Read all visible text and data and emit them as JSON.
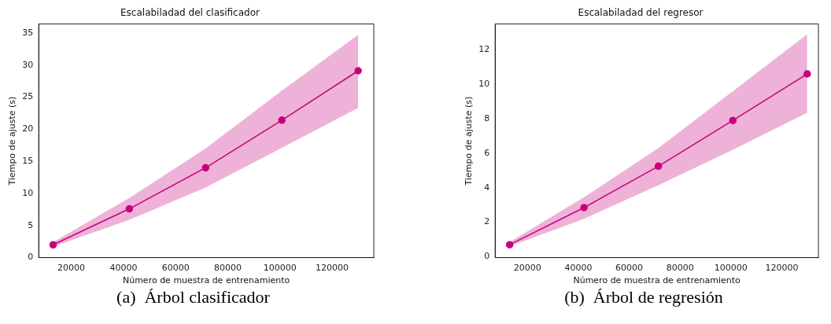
{
  "chart_data": [
    {
      "type": "line",
      "title": "Escalabiladad del clasificador",
      "xlabel": "Número de muestra de entrenamiento",
      "ylabel": "Tiempo de ajuste (s)",
      "annotations": [
        "(a)  Árbol clasificador"
      ],
      "x": [
        13000,
        42250,
        71500,
        100750,
        130000
      ],
      "xlim": [
        7500,
        136000
      ],
      "xticks": [
        20000,
        40000,
        60000,
        80000,
        100000,
        120000
      ],
      "ylim": [
        0,
        36.4
      ],
      "yticks": [
        0,
        5,
        10,
        15,
        20,
        25,
        30,
        35
      ],
      "grid": false,
      "legend": false,
      "marker": "circle",
      "line_style": "solid",
      "series": [
        {
          "color": "#c8007f",
          "values": [
            2.0,
            7.6,
            14.0,
            21.4,
            29.1
          ],
          "lower": [
            1.7,
            5.9,
            10.9,
            17.1,
            23.3
          ],
          "upper": [
            2.4,
            9.3,
            17.0,
            26.0,
            34.7
          ]
        }
      ]
    },
    {
      "type": "line",
      "title": "Escalabiladad del regresor",
      "xlabel": "Número de muestra de entrenamiento",
      "ylabel": "Tiempo de ajuste (s)",
      "annotations": [
        "(b)  Árbol de regresión"
      ],
      "x": [
        13000,
        42250,
        71500,
        100750,
        130000
      ],
      "xlim": [
        7300,
        134400
      ],
      "xticks": [
        20000,
        40000,
        60000,
        80000,
        100000,
        120000
      ],
      "ylim": [
        -0.05,
        13.5
      ],
      "yticks": [
        0,
        2,
        4,
        6,
        8,
        10,
        12
      ],
      "grid": false,
      "legend": false,
      "marker": "circle",
      "line_style": "solid",
      "series": [
        {
          "color": "#c8007f",
          "values": [
            0.7,
            2.85,
            5.25,
            7.9,
            10.6
          ],
          "lower": [
            0.6,
            2.2,
            4.15,
            6.2,
            8.35
          ],
          "upper": [
            0.85,
            3.45,
            6.3,
            9.6,
            12.9
          ]
        }
      ]
    }
  ]
}
